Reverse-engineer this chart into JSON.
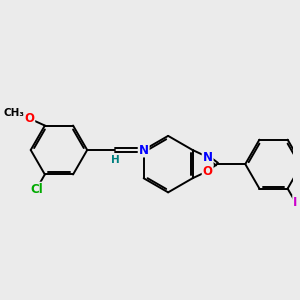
{
  "bg_color": "#ebebeb",
  "bond_color": "#000000",
  "bond_width": 1.4,
  "dbo": 0.07,
  "atom_colors": {
    "N": "#0000ff",
    "O": "#ff0000",
    "Cl": "#00aa00",
    "I": "#cc00cc",
    "H": "#008080"
  },
  "font_size": 8.5,
  "figsize": [
    3.0,
    3.0
  ],
  "dpi": 100
}
